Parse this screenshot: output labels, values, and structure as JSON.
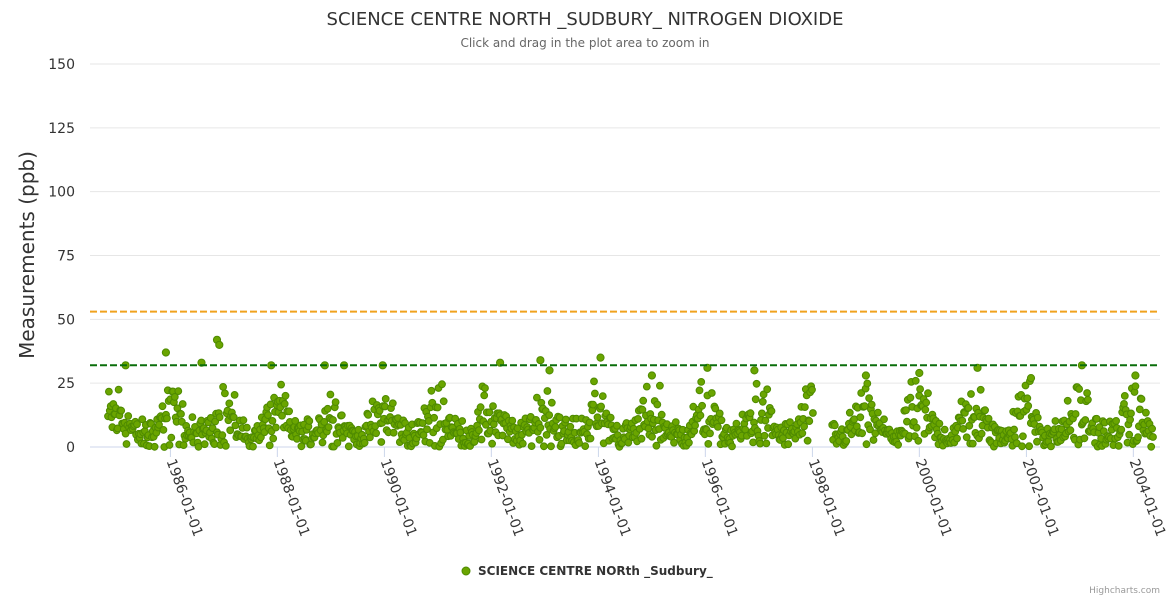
{
  "chart_data": {
    "type": "scatter",
    "title": "SCIENCE CENTRE NORTH _SUDBURY_ NITROGEN DIOXIDE",
    "subtitle": "Click and drag in the plot area to zoom in",
    "xlabel": "",
    "ylabel": "Measurements (ppb)",
    "ylim": [
      0,
      150
    ],
    "yticks": [
      0,
      25,
      50,
      75,
      100,
      125,
      150
    ],
    "xlim": [
      "1984-07-01",
      "2004-07-01"
    ],
    "xticks": [
      "1986-01-01",
      "1988-01-01",
      "1990-01-01",
      "1992-01-01",
      "1994-01-01",
      "1996-01-01",
      "1998-01-01",
      "2000-01-01",
      "2002-01-01",
      "2004-01-01"
    ],
    "reference_lines": [
      {
        "value": 53,
        "color": "#f0a21e",
        "style": "dashed"
      },
      {
        "value": 32,
        "color": "#0a6e0a",
        "style": "dashed"
      }
    ],
    "series": [
      {
        "name": "SCIENCE CENTRE NORth _Sudbury_",
        "color": "#6aa500",
        "border_color": "#4e8a00",
        "data_range": [
          "1984-11-01",
          "2004-05-15"
        ],
        "gap": [
          "1998-01-05",
          "1998-05-15"
        ],
        "typical_range": [
          0,
          25
        ],
        "notable_points": [
          {
            "date": "1985-03-01",
            "value": 32
          },
          {
            "date": "1985-12-01",
            "value": 37
          },
          {
            "date": "1986-08-01",
            "value": 33
          },
          {
            "date": "1986-11-15",
            "value": 42
          },
          {
            "date": "1986-12-01",
            "value": 40
          },
          {
            "date": "1987-11-20",
            "value": 32
          },
          {
            "date": "1988-11-20",
            "value": 32
          },
          {
            "date": "1989-04-01",
            "value": 32
          },
          {
            "date": "1989-12-20",
            "value": 32
          },
          {
            "date": "1992-03-01",
            "value": 33
          },
          {
            "date": "1992-12-01",
            "value": 34
          },
          {
            "date": "1993-02-01",
            "value": 30
          },
          {
            "date": "1994-01-15",
            "value": 35
          },
          {
            "date": "1995-01-01",
            "value": 28
          },
          {
            "date": "1996-01-15",
            "value": 31
          },
          {
            "date": "1996-12-01",
            "value": 30
          },
          {
            "date": "1999-01-01",
            "value": 28
          },
          {
            "date": "2000-01-01",
            "value": 29
          },
          {
            "date": "2001-02-01",
            "value": 31
          },
          {
            "date": "2002-02-01",
            "value": 27
          },
          {
            "date": "2003-01-15",
            "value": 32
          },
          {
            "date": "2004-01-15",
            "value": 28
          }
        ]
      }
    ],
    "legend": "bottom-center",
    "credits": "Highcharts.com"
  }
}
